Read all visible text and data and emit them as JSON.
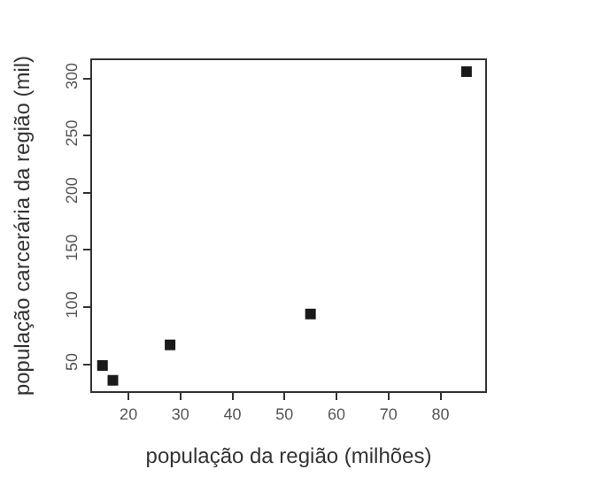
{
  "chart_data": {
    "type": "scatter",
    "xlabel": "população da região (milhões)",
    "ylabel": "população carcerária da região (mil)",
    "x": [
      15,
      17,
      28,
      55,
      85
    ],
    "series": [
      {
        "color": "#1a1a1a",
        "values": [
          49,
          36,
          67,
          94,
          306
        ]
      }
    ],
    "xlim": [
      13,
      88.6
    ],
    "ylim": [
      26.5,
      316
    ],
    "xticks": [
      20,
      30,
      40,
      50,
      60,
      70,
      80
    ],
    "yticks": [
      50,
      100,
      150,
      200,
      250,
      300
    ],
    "marker": "square"
  }
}
